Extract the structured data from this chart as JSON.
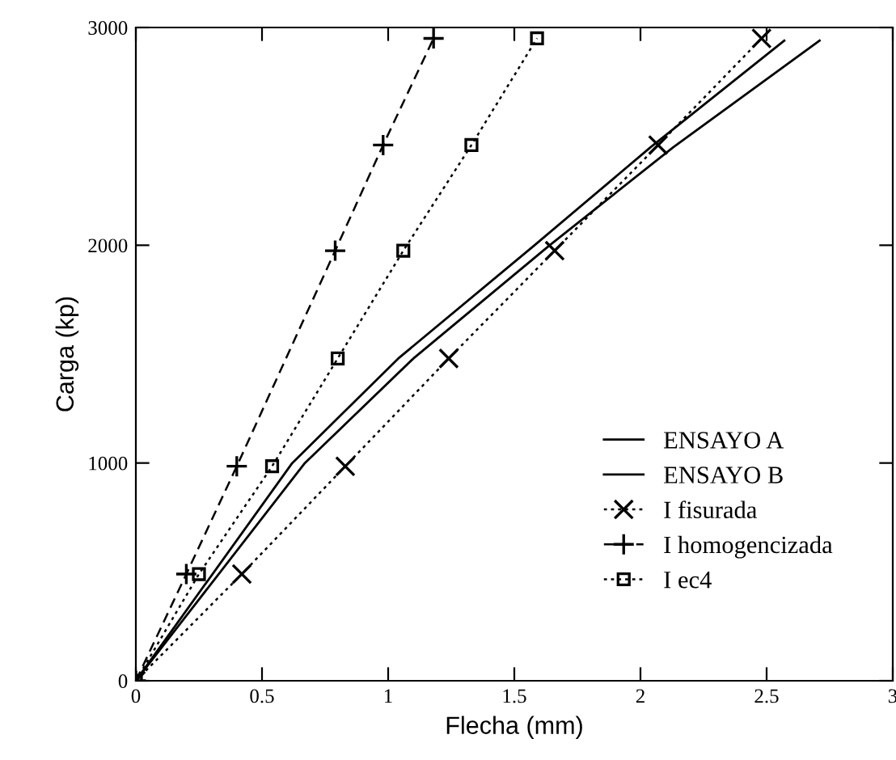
{
  "chart_data": {
    "type": "line",
    "xlabel": "Flecha (mm)",
    "ylabel": "Carga (kp)",
    "xlim": [
      0,
      3
    ],
    "ylim": [
      0,
      3000
    ],
    "xticks": [
      0,
      0.5,
      1,
      1.5,
      2,
      2.5,
      3
    ],
    "yticks": [
      0,
      1000,
      2000,
      3000
    ],
    "grid": false,
    "legend": "bottom right",
    "series": [
      {
        "name": "ENSAYO A",
        "color": "#000000",
        "marker": "none",
        "line_style": "solid",
        "x": [
          0,
          0.62,
          1.04,
          1.58,
          2.04,
          2.57
        ],
        "values": [
          0,
          1000,
          1480,
          2000,
          2450,
          2940
        ]
      },
      {
        "name": "ENSAYO B",
        "color": "#000000",
        "marker": "none",
        "line_style": "solid",
        "x": [
          0,
          0.67,
          1.1,
          1.64,
          2.13,
          2.71
        ],
        "values": [
          0,
          1000,
          1480,
          2000,
          2450,
          2940
        ]
      },
      {
        "name": "I fisurada",
        "color": "#000000",
        "marker": "cross",
        "line_style": "dotted",
        "x": [
          0,
          0.42,
          0.83,
          1.24,
          1.66,
          2.07,
          2.48
        ],
        "values": [
          0,
          490,
          985,
          1480,
          1975,
          2460,
          2950
        ]
      },
      {
        "name": "I homogencizada",
        "color": "#000000",
        "marker": "plus",
        "line_style": "dashed",
        "x": [
          0,
          0.2,
          0.4,
          0.79,
          0.98,
          1.18
        ],
        "values": [
          0,
          490,
          985,
          1975,
          2460,
          2950
        ]
      },
      {
        "name": "I ec4",
        "color": "#000000",
        "marker": "square",
        "line_style": "dotted",
        "x": [
          0,
          0.25,
          0.54,
          0.8,
          1.06,
          1.33,
          1.59
        ],
        "values": [
          0,
          490,
          985,
          1480,
          1975,
          2460,
          2950
        ]
      }
    ]
  }
}
